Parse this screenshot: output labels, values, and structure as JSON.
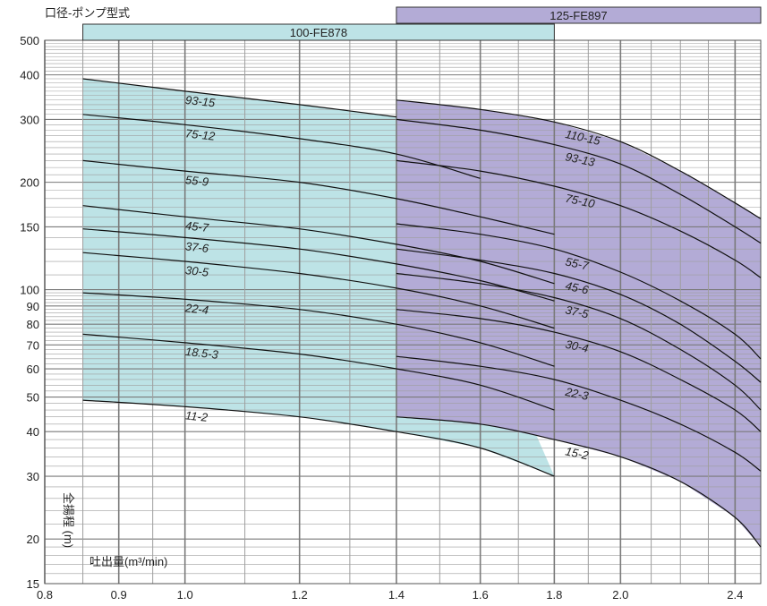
{
  "chart_data": {
    "type": "line",
    "title": "",
    "header_label": "口径-ポンプ型式",
    "xlabel": "吐出量(m³/min)",
    "ylabel": "全揚程 (m)",
    "x_scale": "log",
    "y_scale": "log",
    "xlim": [
      0.8,
      2.5
    ],
    "ylim": [
      15,
      500
    ],
    "grid": true,
    "x_major_ticks": [
      0.8,
      0.9,
      1.0,
      1.2,
      1.4,
      1.6,
      1.8,
      2.0,
      2.4
    ],
    "x_tick_labels": [
      "0.8",
      "0.9",
      "1.0",
      "1.2",
      "1.4",
      "1.6",
      "1.8",
      "2.0",
      "2.4"
    ],
    "x_minor_grid": [
      0.85,
      0.95,
      1.1,
      1.3,
      1.5,
      1.7,
      1.9,
      2.1,
      2.2,
      2.3,
      2.5
    ],
    "y_major_ticks": [
      15,
      20,
      30,
      40,
      50,
      60,
      70,
      80,
      90,
      100,
      150,
      200,
      300,
      400,
      500
    ],
    "y_tick_labels": [
      "15",
      "20",
      "30",
      "40",
      "50",
      "60",
      "70",
      "80",
      "90",
      "100",
      "150",
      "200",
      "300",
      "400",
      "500"
    ],
    "regions": [
      {
        "name": "100-FE878",
        "color": "#bde3e6",
        "x_range": [
          0.85,
          1.8
        ]
      },
      {
        "name": "125-FE897",
        "color": "#b3abd6",
        "x_range": [
          1.4,
          2.5
        ]
      }
    ],
    "series": [
      {
        "name": "93-15",
        "group": "100-FE878",
        "x": [
          0.85,
          1.0,
          1.2,
          1.4
        ],
        "y": [
          390,
          360,
          330,
          305
        ]
      },
      {
        "name": "75-12",
        "group": "100-FE878",
        "x": [
          0.85,
          1.0,
          1.2,
          1.4,
          1.6
        ],
        "y": [
          310,
          290,
          265,
          240,
          205
        ]
      },
      {
        "name": "55-9",
        "group": "100-FE878",
        "x": [
          0.85,
          1.0,
          1.2,
          1.4,
          1.6,
          1.8
        ],
        "y": [
          230,
          215,
          200,
          180,
          160,
          143
        ]
      },
      {
        "name": "45-7",
        "group": "100-FE878",
        "x": [
          0.85,
          1.0,
          1.2,
          1.4,
          1.6,
          1.8
        ],
        "y": [
          172,
          160,
          148,
          134,
          120,
          104
        ]
      },
      {
        "name": "37-6",
        "group": "100-FE878",
        "x": [
          0.85,
          1.0,
          1.2,
          1.4,
          1.6,
          1.8
        ],
        "y": [
          148,
          140,
          130,
          118,
          106,
          93
        ]
      },
      {
        "name": "30-5",
        "group": "100-FE878",
        "x": [
          0.85,
          1.0,
          1.2,
          1.4,
          1.6,
          1.8
        ],
        "y": [
          127,
          120,
          111,
          101,
          90,
          78
        ]
      },
      {
        "name": "22-4",
        "group": "100-FE878",
        "x": [
          0.85,
          1.0,
          1.2,
          1.4,
          1.6,
          1.8
        ],
        "y": [
          98,
          94,
          88,
          80,
          71,
          61
        ]
      },
      {
        "name": "18.5-3",
        "group": "100-FE878",
        "x": [
          0.85,
          1.0,
          1.2,
          1.4,
          1.6,
          1.8
        ],
        "y": [
          75,
          71,
          66,
          60,
          54,
          46
        ]
      },
      {
        "name": "11-2",
        "group": "100-FE878",
        "x": [
          0.85,
          1.0,
          1.2,
          1.4,
          1.6,
          1.8
        ],
        "y": [
          49,
          47,
          44,
          40,
          36,
          30
        ]
      },
      {
        "name": "110-15",
        "group": "125-FE897",
        "x": [
          1.4,
          1.6,
          1.8,
          2.0,
          2.2,
          2.4,
          2.5
        ],
        "y": [
          340,
          320,
          295,
          260,
          215,
          175,
          158
        ]
      },
      {
        "name": "93-13",
        "group": "125-FE897",
        "x": [
          1.4,
          1.6,
          1.8,
          2.0,
          2.2,
          2.4,
          2.5
        ],
        "y": [
          300,
          280,
          255,
          225,
          185,
          150,
          135
        ]
      },
      {
        "name": "75-10",
        "group": "125-FE897",
        "x": [
          1.4,
          1.6,
          1.8,
          2.0,
          2.2,
          2.4,
          2.5
        ],
        "y": [
          230,
          215,
          195,
          172,
          146,
          121,
          108
        ]
      },
      {
        "name": "55-7",
        "group": "125-FE897",
        "x": [
          1.4,
          1.6,
          1.8,
          2.0,
          2.2,
          2.4,
          2.5
        ],
        "y": [
          153,
          143,
          130,
          112,
          93,
          75,
          64
        ]
      },
      {
        "name": "45-6",
        "group": "125-FE897",
        "x": [
          1.4,
          1.6,
          1.8,
          2.0,
          2.2,
          2.4,
          2.5
        ],
        "y": [
          130,
          121,
          111,
          97,
          80,
          63,
          55
        ]
      },
      {
        "name": "37-5",
        "group": "125-FE897",
        "x": [
          1.4,
          1.6,
          1.8,
          2.0,
          2.2,
          2.4,
          2.5
        ],
        "y": [
          111,
          104,
          95,
          83,
          68,
          54,
          46
        ]
      },
      {
        "name": "30-4",
        "group": "125-FE897",
        "x": [
          1.4,
          1.6,
          1.8,
          2.0,
          2.2,
          2.4,
          2.5
        ],
        "y": [
          88,
          83,
          76,
          67,
          56,
          46,
          40
        ]
      },
      {
        "name": "22-3",
        "group": "125-FE897",
        "x": [
          1.4,
          1.6,
          1.8,
          2.0,
          2.2,
          2.4,
          2.5
        ],
        "y": [
          65,
          61,
          56,
          49,
          42,
          35,
          31
        ]
      },
      {
        "name": "15-2",
        "group": "125-FE897",
        "x": [
          1.4,
          1.6,
          1.8,
          2.0,
          2.2,
          2.4,
          2.5
        ],
        "y": [
          44,
          42,
          38,
          34,
          29,
          23,
          19
        ]
      }
    ]
  }
}
